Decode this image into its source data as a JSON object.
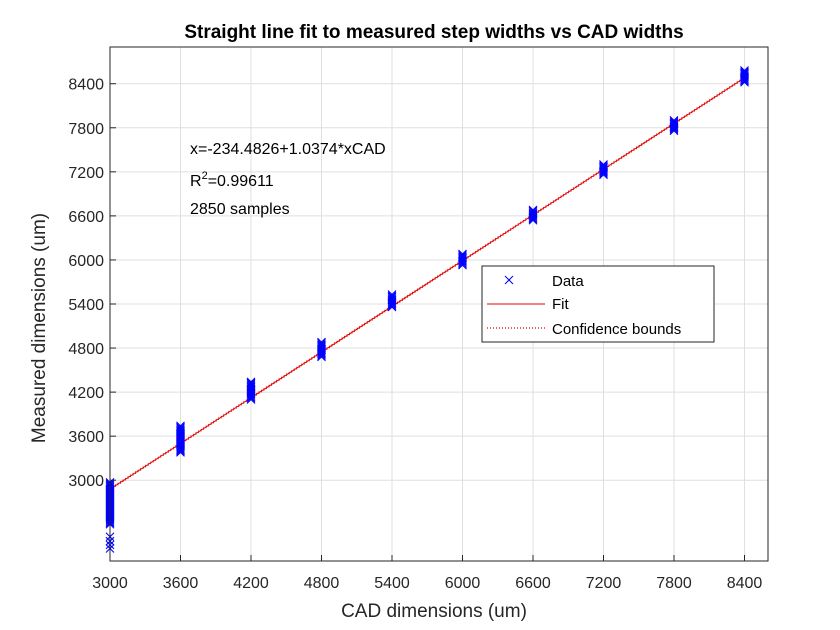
{
  "chart_data": {
    "type": "scatter",
    "title": "Straight line fit to measured step widths vs CAD widths",
    "xlabel": "CAD dimensions (um)",
    "ylabel": "Measured dimensions (um)",
    "xlim": [
      3000,
      8600
    ],
    "ylim": [
      1900,
      8900
    ],
    "x_ticks": [
      3000,
      3600,
      4200,
      4800,
      5400,
      6000,
      6600,
      7200,
      7800,
      8400
    ],
    "y_ticks": [
      3000,
      3600,
      4200,
      4800,
      5400,
      6000,
      6600,
      7200,
      7800,
      8400
    ],
    "grid": true,
    "legend_position": "center-right",
    "annotations": {
      "equation": "x=-234.4826+1.0374*xCAD",
      "r2_prefix": "R",
      "r2_sup": "2",
      "r2_value": "=0.99611",
      "samples": "2850 samples"
    },
    "fit": {
      "intercept": -234.4826,
      "slope": 1.0374,
      "color": "#e00000"
    },
    "series": [
      {
        "name": "Data",
        "marker": "x",
        "color": "#0000ff",
        "groups": [
          {
            "x": 3000,
            "y_range": [
              2400,
              2970
            ],
            "outliers": [
              2070,
              2120,
              2170,
              2230
            ]
          },
          {
            "x": 3600,
            "y_range": [
              3380,
              3740
            ]
          },
          {
            "x": 4200,
            "y_range": [
              4100,
              4340
            ]
          },
          {
            "x": 4800,
            "y_range": [
              4680,
              4880
            ]
          },
          {
            "x": 5400,
            "y_range": [
              5360,
              5530
            ]
          },
          {
            "x": 6000,
            "y_range": [
              5930,
              6080
            ]
          },
          {
            "x": 6600,
            "y_range": [
              6540,
              6680
            ]
          },
          {
            "x": 7200,
            "y_range": [
              7160,
              7300
            ]
          },
          {
            "x": 7800,
            "y_range": [
              7760,
              7900
            ]
          },
          {
            "x": 8400,
            "y_range": [
              8420,
              8580
            ]
          }
        ]
      }
    ],
    "legend": [
      {
        "label": "Data",
        "style": "marker-x",
        "color": "#0000ff"
      },
      {
        "label": "Fit",
        "style": "solid",
        "color": "#e00000"
      },
      {
        "label": "Confidence bounds",
        "style": "dotted",
        "color": "#e00000"
      }
    ]
  }
}
